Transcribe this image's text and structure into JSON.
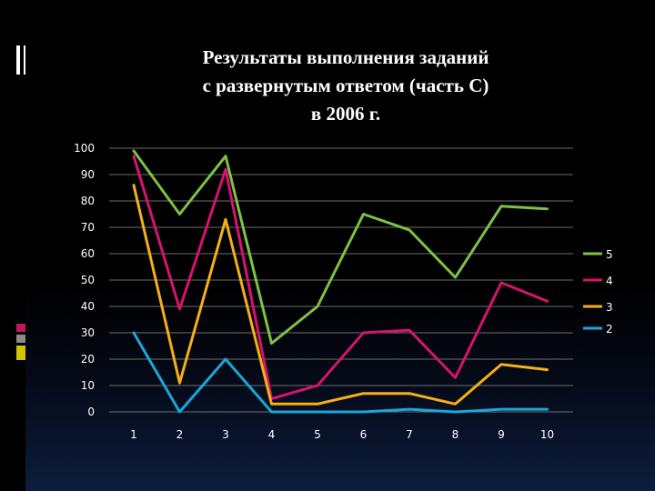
{
  "chart_data": {
    "type": "line",
    "title_lines": [
      "Результаты выполнения заданий",
      "с развернутым ответом (часть С)",
      "в 2006 г."
    ],
    "categories": [
      "1",
      "2",
      "3",
      "4",
      "5",
      "6",
      "7",
      "8",
      "9",
      "10"
    ],
    "ylim": [
      0,
      100
    ],
    "yticks": [
      "0",
      "10",
      "20",
      "30",
      "40",
      "50",
      "60",
      "70",
      "80",
      "90",
      "100"
    ],
    "grid": true,
    "legend_position": "right",
    "series": [
      {
        "name": "5",
        "color": "#7dc242",
        "values": [
          99,
          75,
          97,
          26,
          40,
          75,
          69,
          51,
          78,
          77
        ]
      },
      {
        "name": "4",
        "color": "#d6136e",
        "values": [
          97,
          39,
          92,
          5,
          10,
          30,
          31,
          13,
          49,
          42
        ]
      },
      {
        "name": "3",
        "color": "#f5b017",
        "values": [
          86,
          11,
          73,
          3,
          3,
          7,
          7,
          3,
          18,
          16
        ]
      },
      {
        "name": "2",
        "color": "#1aa6dc",
        "values": [
          30,
          0,
          20,
          0,
          0,
          0,
          1,
          0,
          1,
          1
        ]
      }
    ]
  }
}
